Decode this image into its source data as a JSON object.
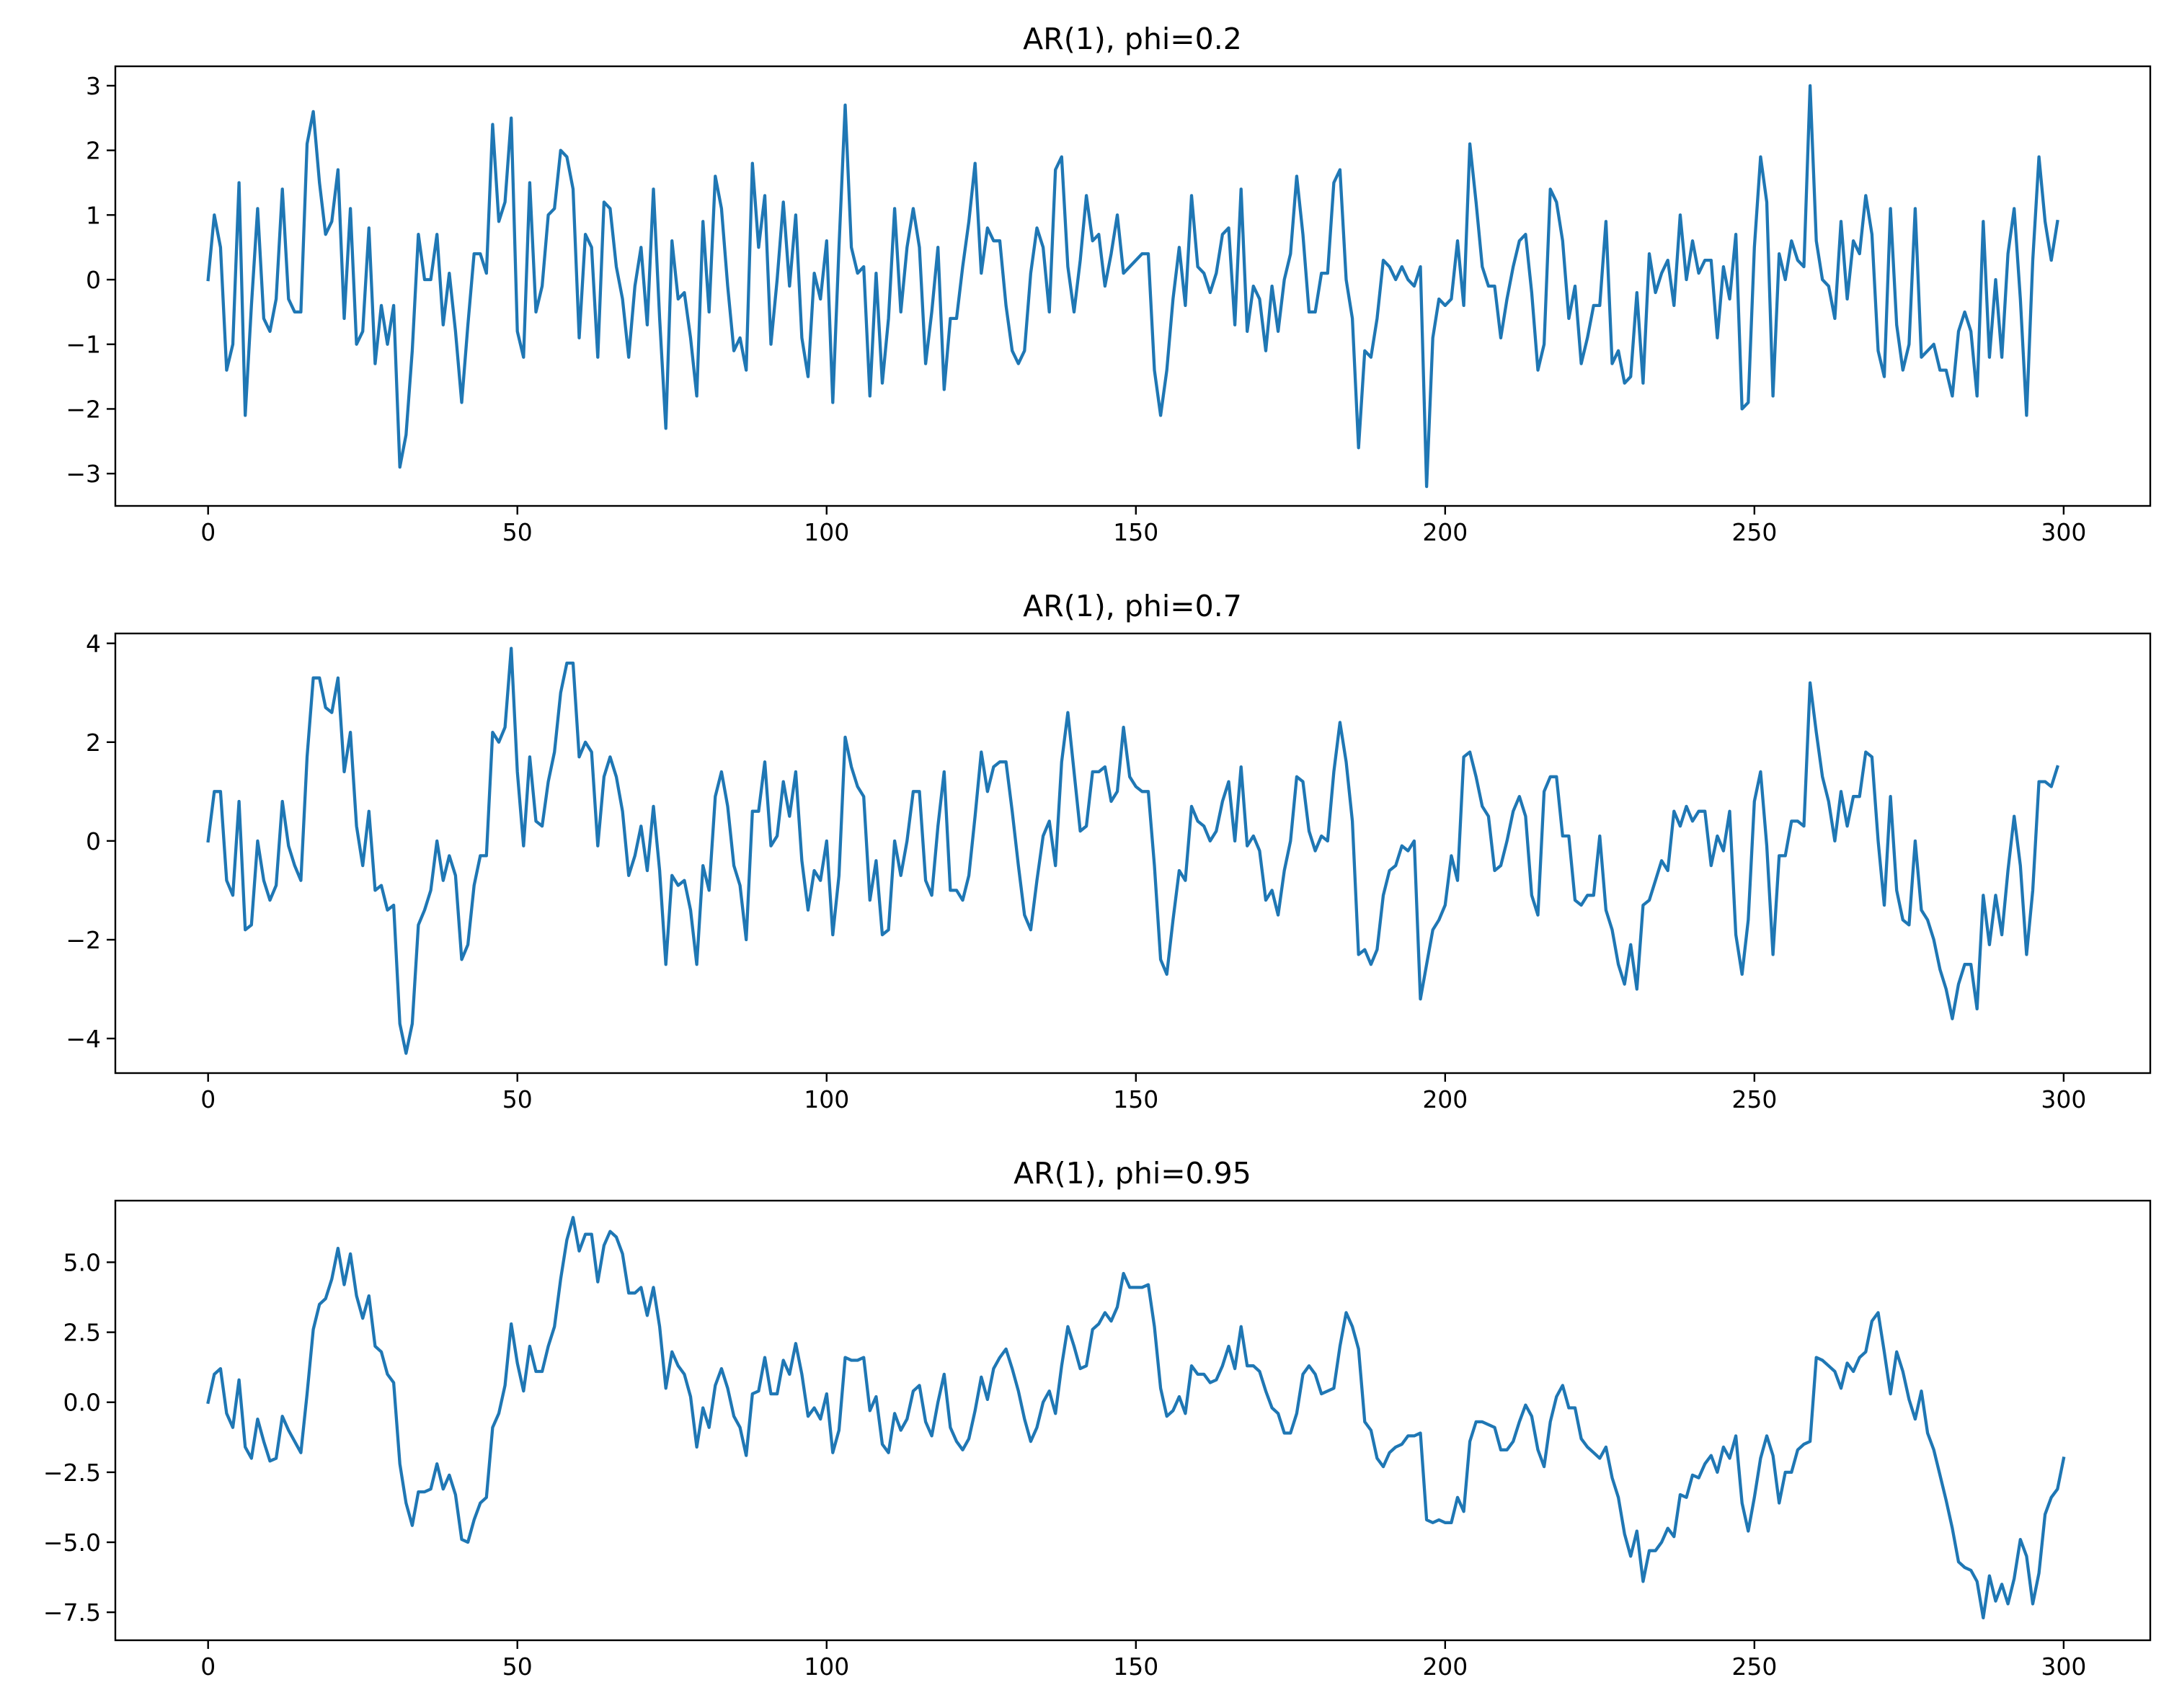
{
  "chart_data": [
    {
      "type": "line",
      "title": "AR(1), phi=0.2",
      "xlabel": "",
      "ylabel": "",
      "xlim": [
        -15,
        314
      ],
      "ylim": [
        -3.5,
        3.3
      ],
      "xticks": [
        0,
        50,
        100,
        150,
        200,
        250,
        300
      ],
      "xtick_labels": [
        "0",
        "50",
        "100",
        "150",
        "200",
        "250",
        "300"
      ],
      "yticks": [
        3,
        2,
        1,
        0,
        -1,
        -2,
        -3
      ],
      "ytick_labels": [
        "3",
        "2",
        "1",
        "0",
        "−1",
        "−2",
        "−3"
      ],
      "grid": false,
      "color": "#1f77b4",
      "series": [
        {
          "x_start": 0,
          "values": [
            0.0,
            1.0,
            0.5,
            -1.4,
            -1.0,
            1.5,
            -2.1,
            -0.4,
            1.1,
            -0.6,
            -0.8,
            -0.3,
            1.4,
            -0.3,
            -0.5,
            -0.5,
            2.1,
            2.6,
            1.5,
            0.7,
            0.9,
            1.7,
            -0.6,
            1.1,
            -1.0,
            -0.8,
            0.8,
            -1.3,
            -0.4,
            -1.0,
            -0.4,
            -2.9,
            -2.4,
            -1.1,
            0.7,
            0.0,
            0.0,
            0.7,
            -0.7,
            0.1,
            -0.8,
            -1.9,
            -0.7,
            0.4,
            0.4,
            0.1,
            2.4,
            0.9,
            1.2,
            2.5,
            -0.8,
            -1.2,
            1.5,
            -0.5,
            -0.1,
            1.0,
            1.1,
            2.0,
            1.9,
            1.4,
            -0.9,
            0.7,
            0.5,
            -1.2,
            1.2,
            1.1,
            0.2,
            -0.3,
            -1.2,
            -0.1,
            0.5,
            -0.7,
            1.4,
            -0.6,
            -2.3,
            0.6,
            -0.3,
            -0.2,
            -0.9,
            -1.8,
            0.9,
            -0.5,
            1.6,
            1.1,
            -0.1,
            -1.1,
            -0.9,
            -1.4,
            1.8,
            0.5,
            1.3,
            -1.0,
            0.0,
            1.2,
            -0.1,
            1.0,
            -0.9,
            -1.5,
            0.1,
            -0.3,
            0.6,
            -1.9,
            0.5,
            2.7,
            0.5,
            0.1,
            0.2,
            -1.8,
            0.1,
            -1.6,
            -0.6,
            1.1,
            -0.5,
            0.5,
            1.1,
            0.5,
            -1.3,
            -0.5,
            0.5,
            -1.7,
            -0.6,
            -0.6,
            0.2,
            0.9,
            1.8,
            0.1,
            0.8,
            0.6,
            0.6,
            -0.4,
            -1.1,
            -1.3,
            -1.1,
            0.1,
            0.8,
            0.5,
            -0.5,
            1.7,
            1.9,
            0.2,
            -0.5,
            0.3,
            1.3,
            0.6,
            0.7,
            -0.1,
            0.4,
            1.0,
            0.1,
            0.2,
            0.3,
            0.4,
            0.4,
            -1.4,
            -2.1,
            -1.4,
            -0.3,
            0.5,
            -0.4,
            1.3,
            0.2,
            0.1,
            -0.2,
            0.1,
            0.7,
            0.8,
            -0.7,
            1.4,
            -0.8,
            -0.1,
            -0.3,
            -1.1,
            -0.1,
            -0.8,
            0.0,
            0.4,
            1.6,
            0.7,
            -0.5,
            -0.5,
            0.1,
            0.1,
            1.5,
            1.7,
            0.0,
            -0.6,
            -2.6,
            -1.1,
            -1.2,
            -0.6,
            0.3,
            0.2,
            0.0,
            0.2,
            0.0,
            -0.1,
            0.2,
            -3.2,
            -0.9,
            -0.3,
            -0.4,
            -0.3,
            0.6,
            -0.4,
            2.1,
            1.2,
            0.2,
            -0.1,
            -0.1,
            -0.9,
            -0.3,
            0.2,
            0.6,
            0.7,
            -0.2,
            -1.4,
            -1.0,
            1.4,
            1.2,
            0.6,
            -0.6,
            -0.1,
            -1.3,
            -0.9,
            -0.4,
            -0.4,
            0.9,
            -1.3,
            -1.1,
            -1.6,
            -1.5,
            -0.2,
            -1.6,
            0.4,
            -0.2,
            0.1,
            0.3,
            -0.4,
            1.0,
            0.0,
            0.6,
            0.1,
            0.3,
            0.3,
            -0.9,
            0.2,
            -0.3,
            0.7,
            -2.0,
            -1.9,
            0.5,
            1.9,
            1.2,
            -1.8,
            0.4,
            0.0,
            0.6,
            0.3,
            0.2,
            3.0,
            0.6,
            0.0,
            -0.1,
            -0.6,
            0.9,
            -0.3,
            0.6,
            0.4,
            1.3,
            0.7,
            -1.1,
            -1.5,
            1.1,
            -0.7,
            -1.4,
            -1.0,
            1.1,
            -1.2,
            -1.1,
            -1.0,
            -1.4,
            -1.4,
            -1.8,
            -0.8,
            -0.5,
            -0.8,
            -1.8,
            0.9,
            -1.2,
            0.0,
            -1.2,
            0.4,
            1.1,
            -0.3,
            -2.1,
            0.3,
            1.9,
            0.9,
            0.3,
            0.9
          ]
        }
      ]
    },
    {
      "type": "line",
      "title": "AR(1), phi=0.7",
      "xlabel": "",
      "ylabel": "",
      "xlim": [
        -15,
        314
      ],
      "ylim": [
        -4.7,
        4.2
      ],
      "xticks": [
        0,
        50,
        100,
        150,
        200,
        250,
        300
      ],
      "xtick_labels": [
        "0",
        "50",
        "100",
        "150",
        "200",
        "250",
        "300"
      ],
      "yticks": [
        4,
        2,
        0,
        -2,
        -4
      ],
      "ytick_labels": [
        "4",
        "2",
        "0",
        "−2",
        "−4"
      ],
      "grid": false,
      "color": "#1f77b4",
      "series": [
        {
          "x_start": 0,
          "values": [
            0.0,
            1.0,
            1.0,
            -0.8,
            -1.1,
            0.8,
            -1.8,
            -1.7,
            0.0,
            -0.8,
            -1.2,
            -0.9,
            0.8,
            -0.1,
            -0.5,
            -0.8,
            1.7,
            3.3,
            3.3,
            2.7,
            2.6,
            3.3,
            1.4,
            2.2,
            0.3,
            -0.5,
            0.6,
            -1.0,
            -0.9,
            -1.4,
            -1.3,
            -3.7,
            -4.3,
            -3.7,
            -1.7,
            -1.4,
            -1.0,
            0.0,
            -0.8,
            -0.3,
            -0.7,
            -2.4,
            -2.1,
            -0.9,
            -0.3,
            -0.3,
            2.2,
            2.0,
            2.3,
            3.9,
            1.4,
            -0.1,
            1.7,
            0.4,
            0.3,
            1.2,
            1.8,
            3.0,
            3.6,
            3.6,
            1.7,
            2.0,
            1.8,
            -0.1,
            1.3,
            1.7,
            1.3,
            0.6,
            -0.7,
            -0.3,
            0.3,
            -0.6,
            0.7,
            -0.6,
            -2.5,
            -0.7,
            -0.9,
            -0.8,
            -1.4,
            -2.5,
            -0.5,
            -1.0,
            0.9,
            1.4,
            0.7,
            -0.5,
            -0.9,
            -2.0,
            0.6,
            0.6,
            1.6,
            -0.1,
            0.1,
            1.2,
            0.5,
            1.4,
            -0.4,
            -1.4,
            -0.6,
            -0.8,
            0.0,
            -1.9,
            -0.7,
            2.1,
            1.5,
            1.1,
            0.9,
            -1.2,
            -0.4,
            -1.9,
            -1.8,
            0.0,
            -0.7,
            0.0,
            1.0,
            1.0,
            -0.8,
            -1.1,
            0.3,
            1.4,
            -1.0,
            -1.0,
            -1.2,
            -0.7,
            0.5,
            1.8,
            1.0,
            1.5,
            1.6,
            1.6,
            0.6,
            -0.5,
            -1.5,
            -1.8,
            -0.8,
            0.1,
            0.4,
            -0.5,
            1.6,
            2.6,
            1.4,
            0.2,
            0.3,
            1.4,
            1.4,
            1.5,
            0.8,
            1.0,
            2.3,
            1.3,
            1.1,
            1.0,
            1.0,
            -0.5,
            -2.4,
            -2.7,
            -1.6,
            -0.6,
            -0.8,
            0.7,
            0.4,
            0.3,
            0.0,
            0.2,
            0.8,
            1.2,
            0.0,
            1.5,
            -0.1,
            0.1,
            -0.2,
            -1.2,
            -1.0,
            -1.5,
            -0.6,
            0.0,
            1.3,
            1.2,
            0.2,
            -0.2,
            0.1,
            0.0,
            1.4,
            2.4,
            1.6,
            0.4,
            -2.3,
            -2.2,
            -2.5,
            -2.2,
            -1.1,
            -0.6,
            -0.5,
            -0.1,
            -0.2,
            0.0,
            -3.2,
            -2.5,
            -1.8,
            -1.6,
            -1.3,
            -0.3,
            -0.8,
            1.7,
            1.8,
            1.3,
            0.7,
            0.5,
            -0.6,
            -0.5,
            0.0,
            0.6,
            0.9,
            0.5,
            -1.1,
            -1.5,
            1.0,
            1.3,
            1.3,
            0.1,
            0.1,
            -1.2,
            -1.3,
            -1.1,
            -1.1,
            0.1,
            -1.4,
            -1.8,
            -2.5,
            -2.9,
            -2.1,
            -3.0,
            -1.3,
            -1.2,
            -0.8,
            -0.4,
            -0.6,
            0.6,
            0.3,
            0.7,
            0.4,
            0.6,
            0.6,
            -0.5,
            0.1,
            -0.2,
            0.6,
            -1.9,
            -2.7,
            -1.6,
            0.8,
            1.4,
            -0.1,
            -2.3,
            -0.3,
            -0.3,
            0.4,
            0.4,
            0.3,
            3.2,
            2.2,
            1.3,
            0.8,
            0.0,
            1.0,
            0.3,
            0.9,
            0.9,
            1.8,
            1.7,
            0.0,
            -1.3,
            0.9,
            -1.0,
            -1.6,
            -1.7,
            0.0,
            -1.4,
            -1.6,
            -2.0,
            -2.6,
            -3.0,
            -3.6,
            -2.9,
            -2.5,
            -2.5,
            -3.4,
            -1.1,
            -2.1,
            -1.1,
            -1.9,
            -0.6,
            0.5,
            -0.5,
            -2.3,
            -1.0,
            1.2,
            1.2,
            1.1,
            1.5
          ]
        }
      ]
    },
    {
      "type": "line",
      "title": "AR(1), phi=0.95",
      "xlabel": "",
      "ylabel": "",
      "xlim": [
        -15,
        314
      ],
      "ylim": [
        -8.5,
        7.2
      ],
      "xticks": [
        0,
        50,
        100,
        150,
        200,
        250,
        300
      ],
      "xtick_labels": [
        "0",
        "50",
        "100",
        "150",
        "200",
        "250",
        "300"
      ],
      "yticks": [
        5.0,
        2.5,
        0.0,
        -2.5,
        -5.0,
        -7.5
      ],
      "ytick_labels": [
        "5.0",
        "2.5",
        "0.0",
        "−2.5",
        "−5.0",
        "−7.5"
      ],
      "grid": false,
      "color": "#1f77b4",
      "series": [
        {
          "x_start": 0,
          "values": [
            0.0,
            1.0,
            1.2,
            -0.4,
            -0.9,
            0.8,
            -1.6,
            -2.0,
            -0.6,
            -1.4,
            -2.1,
            -2.0,
            -0.5,
            -1.0,
            -1.4,
            -1.8,
            0.3,
            2.6,
            3.5,
            3.7,
            4.4,
            5.5,
            4.2,
            5.3,
            3.8,
            3.0,
            3.8,
            2.0,
            1.8,
            1.0,
            0.7,
            -2.2,
            -3.6,
            -4.4,
            -3.2,
            -3.2,
            -3.1,
            -2.2,
            -3.1,
            -2.6,
            -3.3,
            -4.9,
            -5.0,
            -4.2,
            -3.6,
            -3.4,
            -0.9,
            -0.4,
            0.6,
            2.8,
            1.4,
            0.4,
            2.0,
            1.1,
            1.1,
            2.0,
            2.7,
            4.4,
            5.8,
            6.6,
            5.4,
            6.0,
            6.0,
            4.3,
            5.6,
            6.1,
            5.9,
            5.3,
            3.9,
            3.9,
            4.1,
            3.1,
            4.1,
            2.7,
            0.5,
            1.8,
            1.3,
            1.0,
            0.2,
            -1.6,
            -0.2,
            -0.9,
            0.6,
            1.2,
            0.5,
            -0.5,
            -0.9,
            -1.9,
            0.3,
            0.4,
            1.6,
            0.3,
            0.3,
            1.5,
            1.0,
            2.1,
            1.0,
            -0.5,
            -0.2,
            -0.6,
            0.3,
            -1.8,
            -1.0,
            1.6,
            1.5,
            1.5,
            1.6,
            -0.3,
            0.2,
            -1.5,
            -1.8,
            -0.4,
            -1.0,
            -0.6,
            0.4,
            0.6,
            -0.7,
            -1.2,
            0.0,
            1.0,
            -0.9,
            -1.4,
            -1.7,
            -1.3,
            -0.3,
            0.9,
            0.1,
            1.2,
            1.6,
            1.9,
            1.2,
            0.4,
            -0.6,
            -1.4,
            -0.9,
            0.0,
            0.4,
            -0.4,
            1.3,
            2.7,
            2.0,
            1.2,
            1.3,
            2.6,
            2.8,
            3.2,
            2.9,
            3.4,
            4.6,
            4.1,
            4.1,
            4.1,
            4.2,
            2.7,
            0.5,
            -0.5,
            -0.3,
            0.2,
            -0.4,
            1.3,
            1.0,
            1.0,
            0.7,
            0.8,
            1.3,
            2.0,
            1.2,
            2.7,
            1.3,
            1.3,
            1.1,
            0.4,
            -0.2,
            -0.4,
            -1.1,
            -1.1,
            -0.4,
            1.0,
            1.3,
            1.0,
            0.3,
            0.4,
            0.5,
            2.0,
            3.2,
            2.7,
            1.9,
            -0.7,
            -1.0,
            -2.0,
            -2.3,
            -1.8,
            -1.6,
            -1.5,
            -1.2,
            -1.2,
            -1.1,
            -4.2,
            -4.3,
            -4.2,
            -4.3,
            -4.3,
            -3.4,
            -3.9,
            -1.4,
            -0.7,
            -0.7,
            -0.8,
            -0.9,
            -1.7,
            -1.7,
            -1.4,
            -0.7,
            -0.1,
            -0.5,
            -1.7,
            -2.3,
            -0.7,
            0.2,
            0.6,
            -0.2,
            -0.2,
            -1.3,
            -1.6,
            -1.8,
            -2.0,
            -1.6,
            -2.7,
            -3.4,
            -4.7,
            -5.5,
            -4.6,
            -6.4,
            -5.3,
            -5.3,
            -5.0,
            -4.5,
            -4.8,
            -3.3,
            -3.4,
            -2.6,
            -2.7,
            -2.2,
            -1.9,
            -2.5,
            -1.6,
            -2.0,
            -1.2,
            -3.6,
            -4.6,
            -3.4,
            -2.0,
            -1.2,
            -1.9,
            -3.6,
            -2.5,
            -2.5,
            -1.7,
            -1.5,
            -1.4,
            1.6,
            1.5,
            1.3,
            1.1,
            0.5,
            1.4,
            1.1,
            1.6,
            1.8,
            2.9,
            3.2,
            1.8,
            0.3,
            1.8,
            1.1,
            0.1,
            -0.6,
            0.4,
            -1.1,
            -1.7,
            -2.6,
            -3.5,
            -4.5,
            -5.7,
            -5.9,
            -6.0,
            -6.4,
            -7.7,
            -6.2,
            -7.1,
            -6.5,
            -7.2,
            -6.3,
            -4.9,
            -5.5,
            -7.2,
            -6.1,
            -4.0,
            -3.4,
            -3.1,
            -2.0
          ]
        }
      ]
    }
  ]
}
